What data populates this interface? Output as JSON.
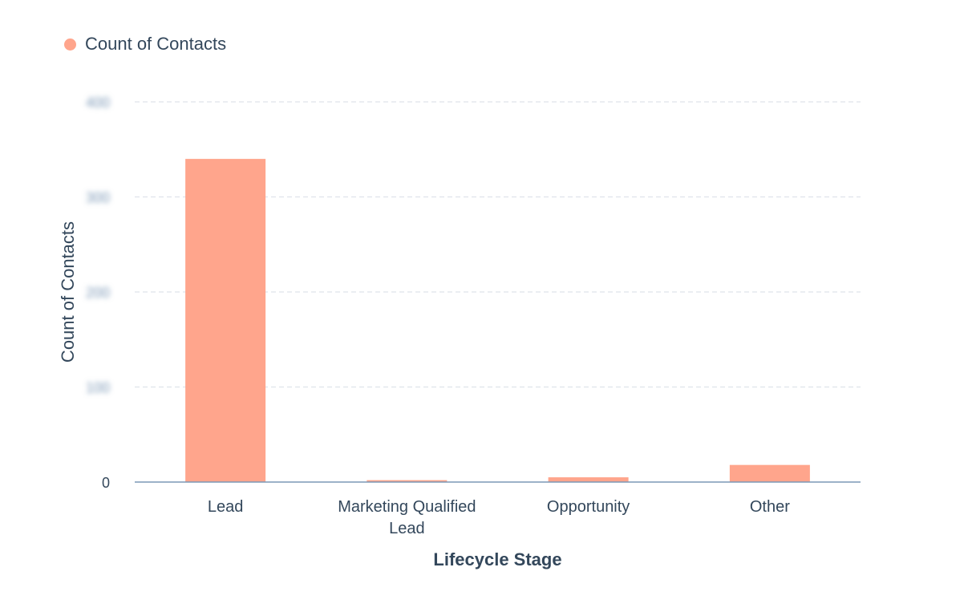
{
  "chart_data": {
    "type": "bar",
    "categories": [
      "Lead",
      "Marketing Qualified Lead",
      "Opportunity",
      "Other"
    ],
    "series": [
      {
        "name": "Count of Contacts",
        "values": [
          340,
          2,
          5,
          18
        ]
      }
    ],
    "xlabel": "Lifecycle Stage",
    "ylabel": "Count of Contacts",
    "ylim": [
      0,
      400
    ],
    "yticks": [
      0,
      100,
      200,
      300,
      400
    ],
    "ytick_labels": [
      "0",
      "100",
      "200",
      "300",
      "400"
    ],
    "ytick_labels_obscured": [
      false,
      true,
      true,
      true,
      true
    ],
    "legend": "top-left",
    "grid": true,
    "colors": {
      "bar": "#ffa58c",
      "axis": "#7c98b6",
      "grid": "#dfe3eb",
      "text": "#33475b"
    }
  }
}
